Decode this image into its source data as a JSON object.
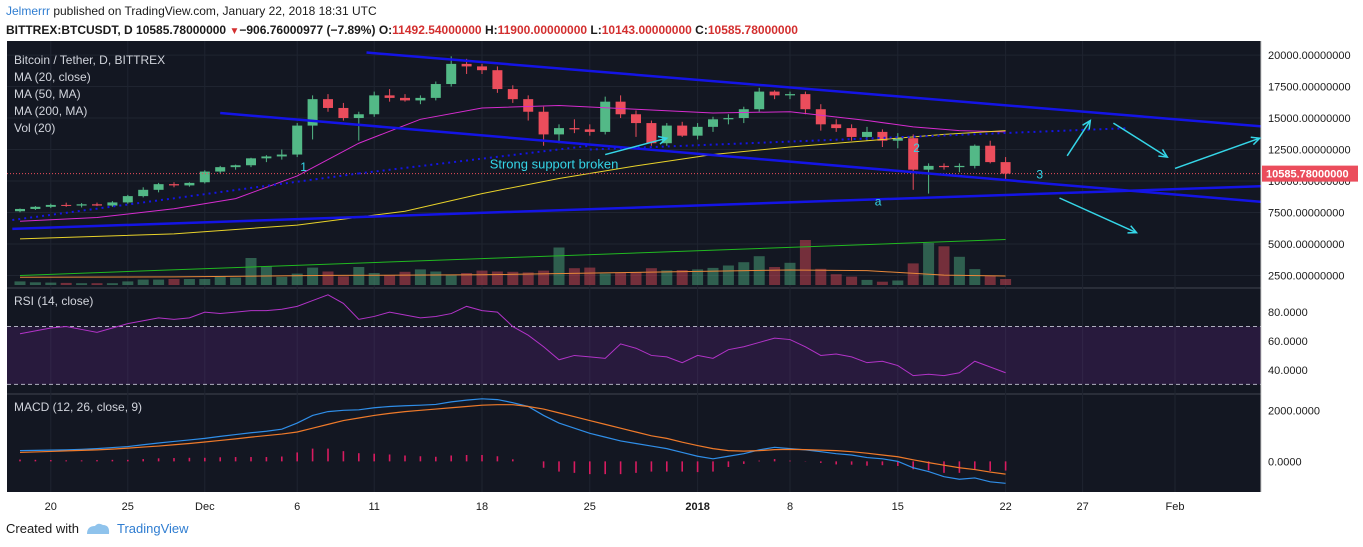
{
  "header": {
    "user": "Jelmerrr",
    "published_text": " published on TradingView.com, January 22, 2018 18:31 UTC",
    "symbol": "BITTREX:BTCUSDT, D",
    "last": "10585.78000000",
    "change": "−906.76000977 (−7.89%)",
    "o_label": "O:",
    "o": "11492.54000000",
    "h_label": "H:",
    "h": "11900.00000000",
    "l_label": "L:",
    "l": "10143.00000000",
    "c_label": "C:",
    "c": "10585.78000000"
  },
  "footer": {
    "created_with": "Created with",
    "brand": "TradingView"
  },
  "colors": {
    "bg": "#131722",
    "up": "#53b987",
    "down": "#eb4d5c",
    "trend": "#1414e6",
    "ma20": "#d62ccf",
    "ma50": "#e8d22a",
    "ma200": "#21b921",
    "annot": "#35d6e8"
  },
  "chart_data": [
    {
      "type": "candlestick",
      "legend": [
        "Bitcoin / Tether, D, BITTREX",
        "MA (20, close)",
        "MA (50, MA)",
        "MA (200, MA)",
        "Vol (20)"
      ],
      "y_ticks": [
        "20000.00000000",
        "17500.00000000",
        "15000.00000000",
        "12500.00000000",
        "10000.00000000",
        "7500.00000000",
        "5000.00000000",
        "2500.00000000"
      ],
      "y_tick_values": [
        20000,
        17500,
        15000,
        12500,
        10000,
        7500,
        5000,
        2500
      ],
      "ylim": [
        1900,
        20800
      ],
      "last_price_label": "10585.78000000",
      "last_price": 10585.78,
      "x_ticks": [
        "20",
        "25",
        "Dec",
        "6",
        "11",
        "18",
        "25",
        "2018",
        "8",
        "15",
        "22",
        "27",
        "Feb"
      ],
      "x_tick_index": [
        2,
        7,
        12,
        18,
        23,
        30,
        37,
        44,
        50,
        57,
        64,
        69,
        75
      ],
      "ohlc": [
        [
          7600,
          7820,
          7520,
          7780
        ],
        [
          7780,
          8010,
          7700,
          7950
        ],
        [
          7950,
          8200,
          7850,
          8100
        ],
        [
          8100,
          8280,
          7950,
          8050
        ],
        [
          8050,
          8250,
          7900,
          8150
        ],
        [
          8150,
          8280,
          8000,
          8050
        ],
        [
          8050,
          8400,
          7950,
          8300
        ],
        [
          8300,
          8900,
          8200,
          8800
        ],
        [
          8800,
          9500,
          8700,
          9300
        ],
        [
          9300,
          9850,
          9100,
          9750
        ],
        [
          9750,
          9900,
          9500,
          9650
        ],
        [
          9650,
          9900,
          9550,
          9850
        ],
        [
          9900,
          10850,
          9800,
          10750
        ],
        [
          10750,
          11200,
          10600,
          11100
        ],
        [
          11100,
          11300,
          10900,
          11250
        ],
        [
          11250,
          11850,
          11100,
          11800
        ],
        [
          11800,
          12050,
          11500,
          11950
        ],
        [
          11950,
          12500,
          11700,
          12100
        ],
        [
          12100,
          14600,
          11900,
          14400
        ],
        [
          14400,
          16800,
          13300,
          16500
        ],
        [
          16500,
          16900,
          15500,
          15800
        ],
        [
          15800,
          16200,
          14800,
          15000
        ],
        [
          15000,
          15500,
          13200,
          15300
        ],
        [
          15300,
          17100,
          15100,
          16800
        ],
        [
          16800,
          17300,
          16300,
          16600
        ],
        [
          16600,
          16900,
          16300,
          16400
        ],
        [
          16400,
          16800,
          16100,
          16600
        ],
        [
          16600,
          17900,
          16400,
          17700
        ],
        [
          17700,
          19900,
          17500,
          19300
        ],
        [
          19300,
          19700,
          18500,
          19100
        ],
        [
          19100,
          19300,
          18500,
          18800
        ],
        [
          18800,
          19100,
          17000,
          17300
        ],
        [
          17300,
          17600,
          16200,
          16500
        ],
        [
          16500,
          16800,
          14800,
          15500
        ],
        [
          15500,
          15900,
          12800,
          13700
        ],
        [
          13700,
          14500,
          13000,
          14200
        ],
        [
          14200,
          14900,
          13800,
          14100
        ],
        [
          14100,
          14500,
          13600,
          13900
        ],
        [
          13900,
          16700,
          13700,
          16300
        ],
        [
          16300,
          16800,
          15000,
          15300
        ],
        [
          15300,
          15600,
          13500,
          14600
        ],
        [
          14600,
          14800,
          12800,
          13000
        ],
        [
          13000,
          14600,
          12800,
          14400
        ],
        [
          14400,
          14700,
          13500,
          13600
        ],
        [
          13600,
          14600,
          13300,
          14300
        ],
        [
          14300,
          15100,
          13900,
          14900
        ],
        [
          14900,
          15300,
          14500,
          15000
        ],
        [
          15000,
          15900,
          14600,
          15700
        ],
        [
          15700,
          17400,
          15500,
          17100
        ],
        [
          17100,
          17200,
          16500,
          16800
        ],
        [
          16800,
          17100,
          16500,
          16900
        ],
        [
          16900,
          17100,
          15300,
          15700
        ],
        [
          15700,
          16100,
          14000,
          14500
        ],
        [
          14500,
          14900,
          13900,
          14200
        ],
        [
          14200,
          14500,
          13200,
          13500
        ],
        [
          13500,
          14300,
          13200,
          13900
        ],
        [
          13900,
          14100,
          12700,
          13200
        ],
        [
          13200,
          13800,
          12600,
          13400
        ],
        [
          13400,
          13700,
          9300,
          10900
        ],
        [
          10900,
          11400,
          9000,
          11200
        ],
        [
          11200,
          11400,
          10900,
          11100
        ],
        [
          11100,
          11400,
          10700,
          11200
        ],
        [
          11200,
          12900,
          11000,
          12800
        ],
        [
          12800,
          13200,
          11400,
          11500
        ],
        [
          11500,
          11900,
          10143,
          10586
        ]
      ],
      "volume": [
        120,
        90,
        80,
        70,
        60,
        60,
        60,
        120,
        180,
        180,
        200,
        200,
        200,
        280,
        250,
        900,
        620,
        270,
        380,
        580,
        450,
        290,
        600,
        400,
        320,
        440,
        520,
        450,
        320,
        400,
        480,
        450,
        440,
        420,
        480,
        1250,
        560,
        580,
        380,
        400,
        420,
        560,
        490,
        500,
        520,
        570,
        650,
        760,
        960,
        600,
        740,
        1500,
        540,
        360,
        280,
        170,
        110,
        150,
        720,
        1400,
        1290,
        940,
        530,
        300,
        200
      ],
      "ma20_x": [
        0,
        5,
        10,
        14,
        18,
        22,
        26,
        30,
        35,
        40,
        45,
        50,
        55,
        58,
        61,
        64
      ],
      "ma20": [
        6800,
        7100,
        7800,
        8600,
        10400,
        13000,
        14900,
        15800,
        16000,
        15700,
        15400,
        15500,
        14800,
        14300,
        14000,
        13900
      ],
      "ma50_x": [
        0,
        10,
        18,
        25,
        30,
        35,
        40,
        45,
        50,
        55,
        60,
        64
      ],
      "ma50": [
        5400,
        5800,
        6500,
        7600,
        9000,
        10200,
        11200,
        12100,
        12700,
        13200,
        13700,
        14000
      ],
      "ma200_x": [
        0,
        64
      ],
      "ma200": [
        2500,
        5350
      ],
      "vol_ma_x": [
        0,
        10,
        20,
        30,
        40,
        50,
        55,
        60,
        64
      ],
      "vol_ma": [
        260,
        270,
        320,
        340,
        420,
        500,
        480,
        330,
        300
      ]
    },
    {
      "type": "line",
      "name": "RSI (14, close)",
      "y_ticks": [
        "80.0000",
        "60.0000",
        "40.0000"
      ],
      "y_tick_values": [
        80,
        60,
        40
      ],
      "bands": [
        70,
        30
      ],
      "ylim": [
        24,
        96
      ],
      "values": [
        65,
        67,
        69,
        70,
        68,
        66,
        69,
        72,
        74,
        76,
        75,
        76,
        80,
        79,
        80,
        81,
        81,
        82,
        84,
        88,
        92,
        86,
        75,
        77,
        80,
        78,
        76,
        77,
        79,
        84,
        81,
        80,
        70,
        64,
        56,
        47,
        50,
        49,
        48,
        58,
        55,
        50,
        49,
        45,
        50,
        48,
        54,
        56,
        59,
        62,
        61,
        56,
        50,
        51,
        49,
        45,
        46,
        43,
        36,
        37,
        36,
        38,
        46,
        42,
        38
      ]
    },
    {
      "type": "line",
      "name": "MACD (12, 26, close, 9)",
      "y_ticks": [
        "2000.0000",
        "0.0000"
      ],
      "y_tick_values": [
        2000,
        0
      ],
      "ylim": [
        -1200,
        2600
      ],
      "macd": [
        420,
        430,
        440,
        450,
        470,
        500,
        540,
        580,
        650,
        720,
        780,
        840,
        900,
        980,
        1050,
        1120,
        1180,
        1260,
        1500,
        1800,
        1950,
        2000,
        2020,
        2100,
        2150,
        2180,
        2200,
        2230,
        2330,
        2400,
        2450,
        2420,
        2300,
        2150,
        1800,
        1500,
        1300,
        1100,
        950,
        800,
        700,
        600,
        500,
        350,
        200,
        100,
        200,
        300,
        450,
        550,
        500,
        450,
        380,
        300,
        250,
        150,
        100,
        0,
        -250,
        -400,
        -600,
        -700,
        -650,
        -800,
        -860
      ],
      "signal": [
        350,
        370,
        390,
        410,
        430,
        450,
        480,
        520,
        560,
        600,
        650,
        700,
        760,
        820,
        880,
        950,
        1010,
        1070,
        1150,
        1300,
        1450,
        1600,
        1700,
        1800,
        1880,
        1950,
        2000,
        2050,
        2100,
        2150,
        2200,
        2220,
        2220,
        2150,
        2050,
        1900,
        1750,
        1600,
        1450,
        1300,
        1150,
        1000,
        900,
        750,
        620,
        500,
        420,
        400,
        420,
        460,
        470,
        460,
        440,
        420,
        380,
        320,
        250,
        180,
        60,
        -50,
        -150,
        -250,
        -320,
        -420,
        -500
      ]
    }
  ],
  "annotations": {
    "strong_support": "Strong support broken",
    "label_1": "1",
    "label_2": "2",
    "label_3": "3",
    "label_a": "a"
  }
}
